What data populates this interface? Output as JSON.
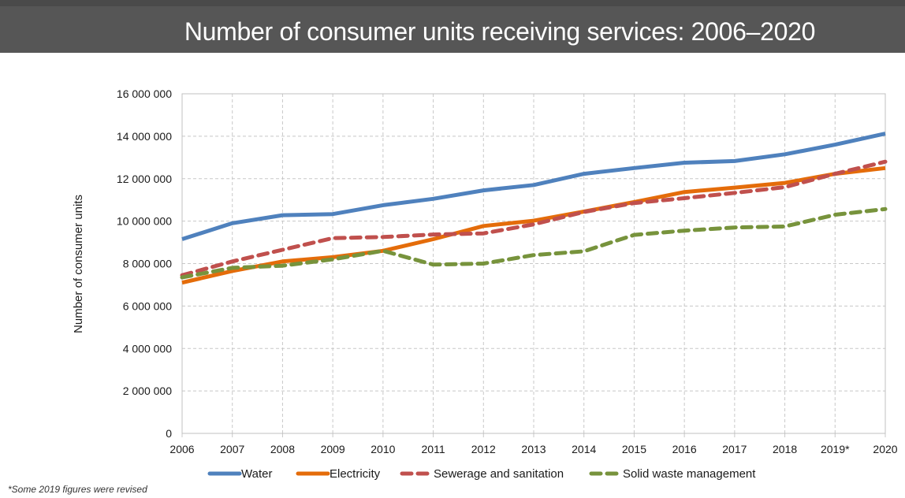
{
  "header": {
    "title": "Number of consumer units receiving services: 2006–2020"
  },
  "footnote": "*Some 2019 figures were revised",
  "chart_data": {
    "type": "line",
    "title": "Number of consumer units receiving services: 2006–2020",
    "xlabel": "",
    "ylabel": "Number of consumer units",
    "categories": [
      "2006",
      "2007",
      "2008",
      "2009",
      "2010",
      "2011",
      "2012",
      "2013",
      "2014",
      "2015",
      "2016",
      "2017",
      "2018",
      "2019*",
      "2020"
    ],
    "ylim": [
      0,
      16000000
    ],
    "yticks": [
      0,
      2000000,
      4000000,
      6000000,
      8000000,
      10000000,
      12000000,
      14000000,
      16000000
    ],
    "ytick_labels": [
      "0",
      "2 000 000",
      "4 000 000",
      "6 000 000",
      "8 000 000",
      "10 000 000",
      "12 000 000",
      "14 000 000",
      "16 000 000"
    ],
    "grid": true,
    "legend_position": "bottom",
    "series": [
      {
        "name": "Water",
        "color": "#4f81bd",
        "style": "solid",
        "values": [
          9150000,
          9900000,
          10280000,
          10330000,
          10750000,
          11050000,
          11450000,
          11700000,
          12230000,
          12500000,
          12750000,
          12830000,
          13150000,
          13600000,
          14120000
        ]
      },
      {
        "name": "Electricity",
        "color": "#e46c0a",
        "style": "solid",
        "values": [
          7100000,
          7650000,
          8100000,
          8300000,
          8600000,
          9150000,
          9770000,
          10020000,
          10450000,
          10900000,
          11370000,
          11580000,
          11800000,
          12230000,
          12500000
        ]
      },
      {
        "name": "Sewerage and sanitation",
        "color": "#c0504d",
        "style": "dashed",
        "values": [
          7450000,
          8100000,
          8650000,
          9200000,
          9250000,
          9370000,
          9420000,
          9850000,
          10430000,
          10850000,
          11080000,
          11330000,
          11600000,
          12230000,
          12800000
        ]
      },
      {
        "name": "Solid waste management",
        "color": "#77933c",
        "style": "dashed",
        "values": [
          7350000,
          7800000,
          7900000,
          8200000,
          8600000,
          7950000,
          8000000,
          8400000,
          8580000,
          9350000,
          9550000,
          9700000,
          9750000,
          10300000,
          10570000
        ]
      }
    ]
  }
}
